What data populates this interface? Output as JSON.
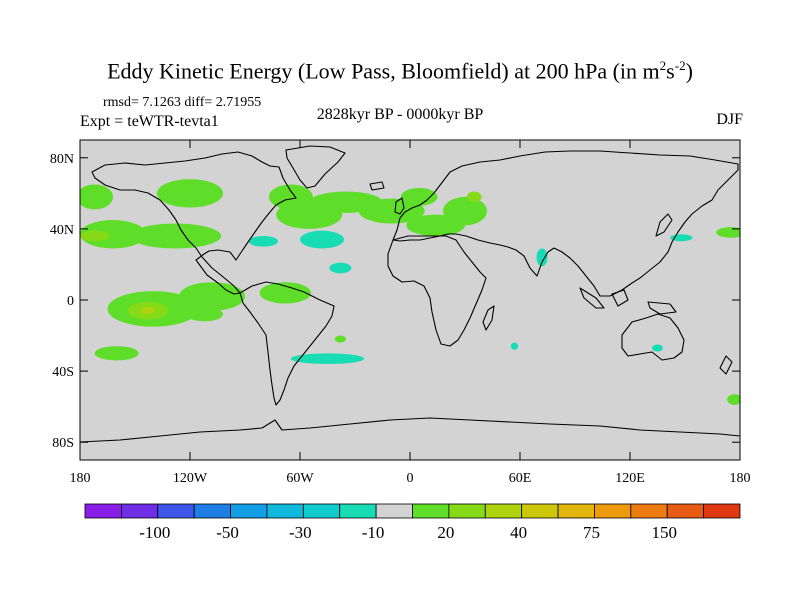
{
  "chart_data": {
    "type": "heatmap",
    "title_main": "Eddy Kinetic Energy (Low Pass, Bloomfield) at 200 hPa (in m",
    "title_sup1": "2",
    "title_mid": "s",
    "title_sup2": "-2",
    "title_end": ")",
    "stats": "rmsd= 7.1263 diff= 2.71955",
    "experiment": "Expt = teWTR-tevta1",
    "period": "2828kyr BP - 0000kyr BP",
    "season": "DJF",
    "xlim": [
      -180,
      180
    ],
    "ylim": [
      -90,
      90
    ],
    "x_ticks": [
      {
        "value": -180,
        "label": "180"
      },
      {
        "value": -120,
        "label": "120W"
      },
      {
        "value": -60,
        "label": "60W"
      },
      {
        "value": 0,
        "label": "0"
      },
      {
        "value": 60,
        "label": "60E"
      },
      {
        "value": 120,
        "label": "120E"
      },
      {
        "value": 180,
        "label": "180"
      }
    ],
    "y_ticks": [
      {
        "value": 80,
        "label": "80N"
      },
      {
        "value": 40,
        "label": "40N"
      },
      {
        "value": 0,
        "label": "0"
      },
      {
        "value": -40,
        "label": "40S"
      },
      {
        "value": -80,
        "label": "80S"
      }
    ],
    "background_color": "#d3d3d3",
    "colorbar": {
      "colors": [
        "#8a1de8",
        "#6f2ee6",
        "#3f57e8",
        "#1f7ee6",
        "#139ee6",
        "#10b8dc",
        "#11cccc",
        "#18dcb4",
        "#d3d3d3",
        "#5ede28",
        "#86da18",
        "#aed20e",
        "#cdc70a",
        "#e3b60b",
        "#ee9a0f",
        "#ec7c12",
        "#e65c14",
        "#e03912"
      ],
      "labels": [
        {
          "boundary": 2,
          "text": "-100"
        },
        {
          "boundary": 4,
          "text": "-50"
        },
        {
          "boundary": 6,
          "text": "-30"
        },
        {
          "boundary": 8,
          "text": "-10"
        },
        {
          "boundary": 10,
          "text": "20"
        },
        {
          "boundary": 12,
          "text": "40"
        },
        {
          "boundary": 14,
          "text": "75"
        },
        {
          "boundary": 16,
          "text": "150"
        }
      ]
    },
    "anomaly_regions": [
      {
        "lon": -162,
        "lat": 37,
        "rlon": 18,
        "rlat": 8,
        "level": 9
      },
      {
        "lon": -172,
        "lat": 36,
        "rlon": 8,
        "rlat": 3,
        "level": 10
      },
      {
        "lon": -128,
        "lat": 36,
        "rlon": 25,
        "rlat": 7,
        "level": 9
      },
      {
        "lon": -172,
        "lat": 58,
        "rlon": 10,
        "rlat": 7,
        "level": 9
      },
      {
        "lon": -120,
        "lat": 60,
        "rlon": 18,
        "rlat": 8,
        "level": 9
      },
      {
        "lon": -65,
        "lat": 58,
        "rlon": 12,
        "rlat": 7,
        "level": 9
      },
      {
        "lon": -55,
        "lat": 48,
        "rlon": 18,
        "rlat": 8,
        "level": 9
      },
      {
        "lon": -35,
        "lat": 55,
        "rlon": 20,
        "rlat": 6,
        "level": 9
      },
      {
        "lon": -10,
        "lat": 50,
        "rlon": 18,
        "rlat": 7,
        "level": 9
      },
      {
        "lon": 5,
        "lat": 58,
        "rlon": 10,
        "rlat": 5,
        "level": 9
      },
      {
        "lon": 30,
        "lat": 50,
        "rlon": 12,
        "rlat": 8,
        "level": 9
      },
      {
        "lon": 14,
        "lat": 42,
        "rlon": 16,
        "rlat": 6,
        "level": 9
      },
      {
        "lon": 35,
        "lat": 58,
        "rlon": 4,
        "rlat": 3,
        "level": 10
      },
      {
        "lon": -140,
        "lat": -5,
        "rlon": 25,
        "rlat": 10,
        "level": 9
      },
      {
        "lon": -143,
        "lat": -6,
        "rlon": 11,
        "rlat": 5,
        "level": 10
      },
      {
        "lon": -143,
        "lat": -6,
        "rlon": 4,
        "rlat": 2,
        "level": 11
      },
      {
        "lon": -108,
        "lat": 2,
        "rlon": 18,
        "rlat": 8,
        "level": 9
      },
      {
        "lon": -160,
        "lat": -30,
        "rlon": 12,
        "rlat": 4,
        "level": 9
      },
      {
        "lon": -112,
        "lat": -8,
        "rlon": 10,
        "rlat": 4,
        "level": 9
      },
      {
        "lon": -68,
        "lat": 4,
        "rlon": 14,
        "rlat": 6,
        "level": 9
      },
      {
        "lon": -38,
        "lat": -22,
        "rlon": 3,
        "rlat": 2,
        "level": 9
      },
      {
        "lon": 175,
        "lat": 38,
        "rlon": 8,
        "rlat": 3,
        "level": 9
      },
      {
        "lon": 177,
        "lat": -56,
        "rlon": 4,
        "rlat": 3,
        "level": 9
      },
      {
        "lon": -80,
        "lat": 33,
        "rlon": 8,
        "rlat": 3,
        "level": 7
      },
      {
        "lon": -48,
        "lat": 34,
        "rlon": 12,
        "rlat": 5,
        "level": 7
      },
      {
        "lon": -38,
        "lat": 18,
        "rlon": 6,
        "rlat": 3,
        "level": 7
      },
      {
        "lon": -45,
        "lat": -33,
        "rlon": 20,
        "rlat": 3,
        "level": 7
      },
      {
        "lon": 72,
        "lat": 24,
        "rlon": 3,
        "rlat": 5,
        "level": 7
      },
      {
        "lon": 148,
        "lat": 35,
        "rlon": 6,
        "rlat": 2,
        "level": 7
      },
      {
        "lon": 135,
        "lat": -27,
        "rlon": 3,
        "rlat": 2,
        "level": 7
      },
      {
        "lon": 57,
        "lat": -26,
        "rlon": 2,
        "rlat": 2,
        "level": 7
      }
    ]
  }
}
